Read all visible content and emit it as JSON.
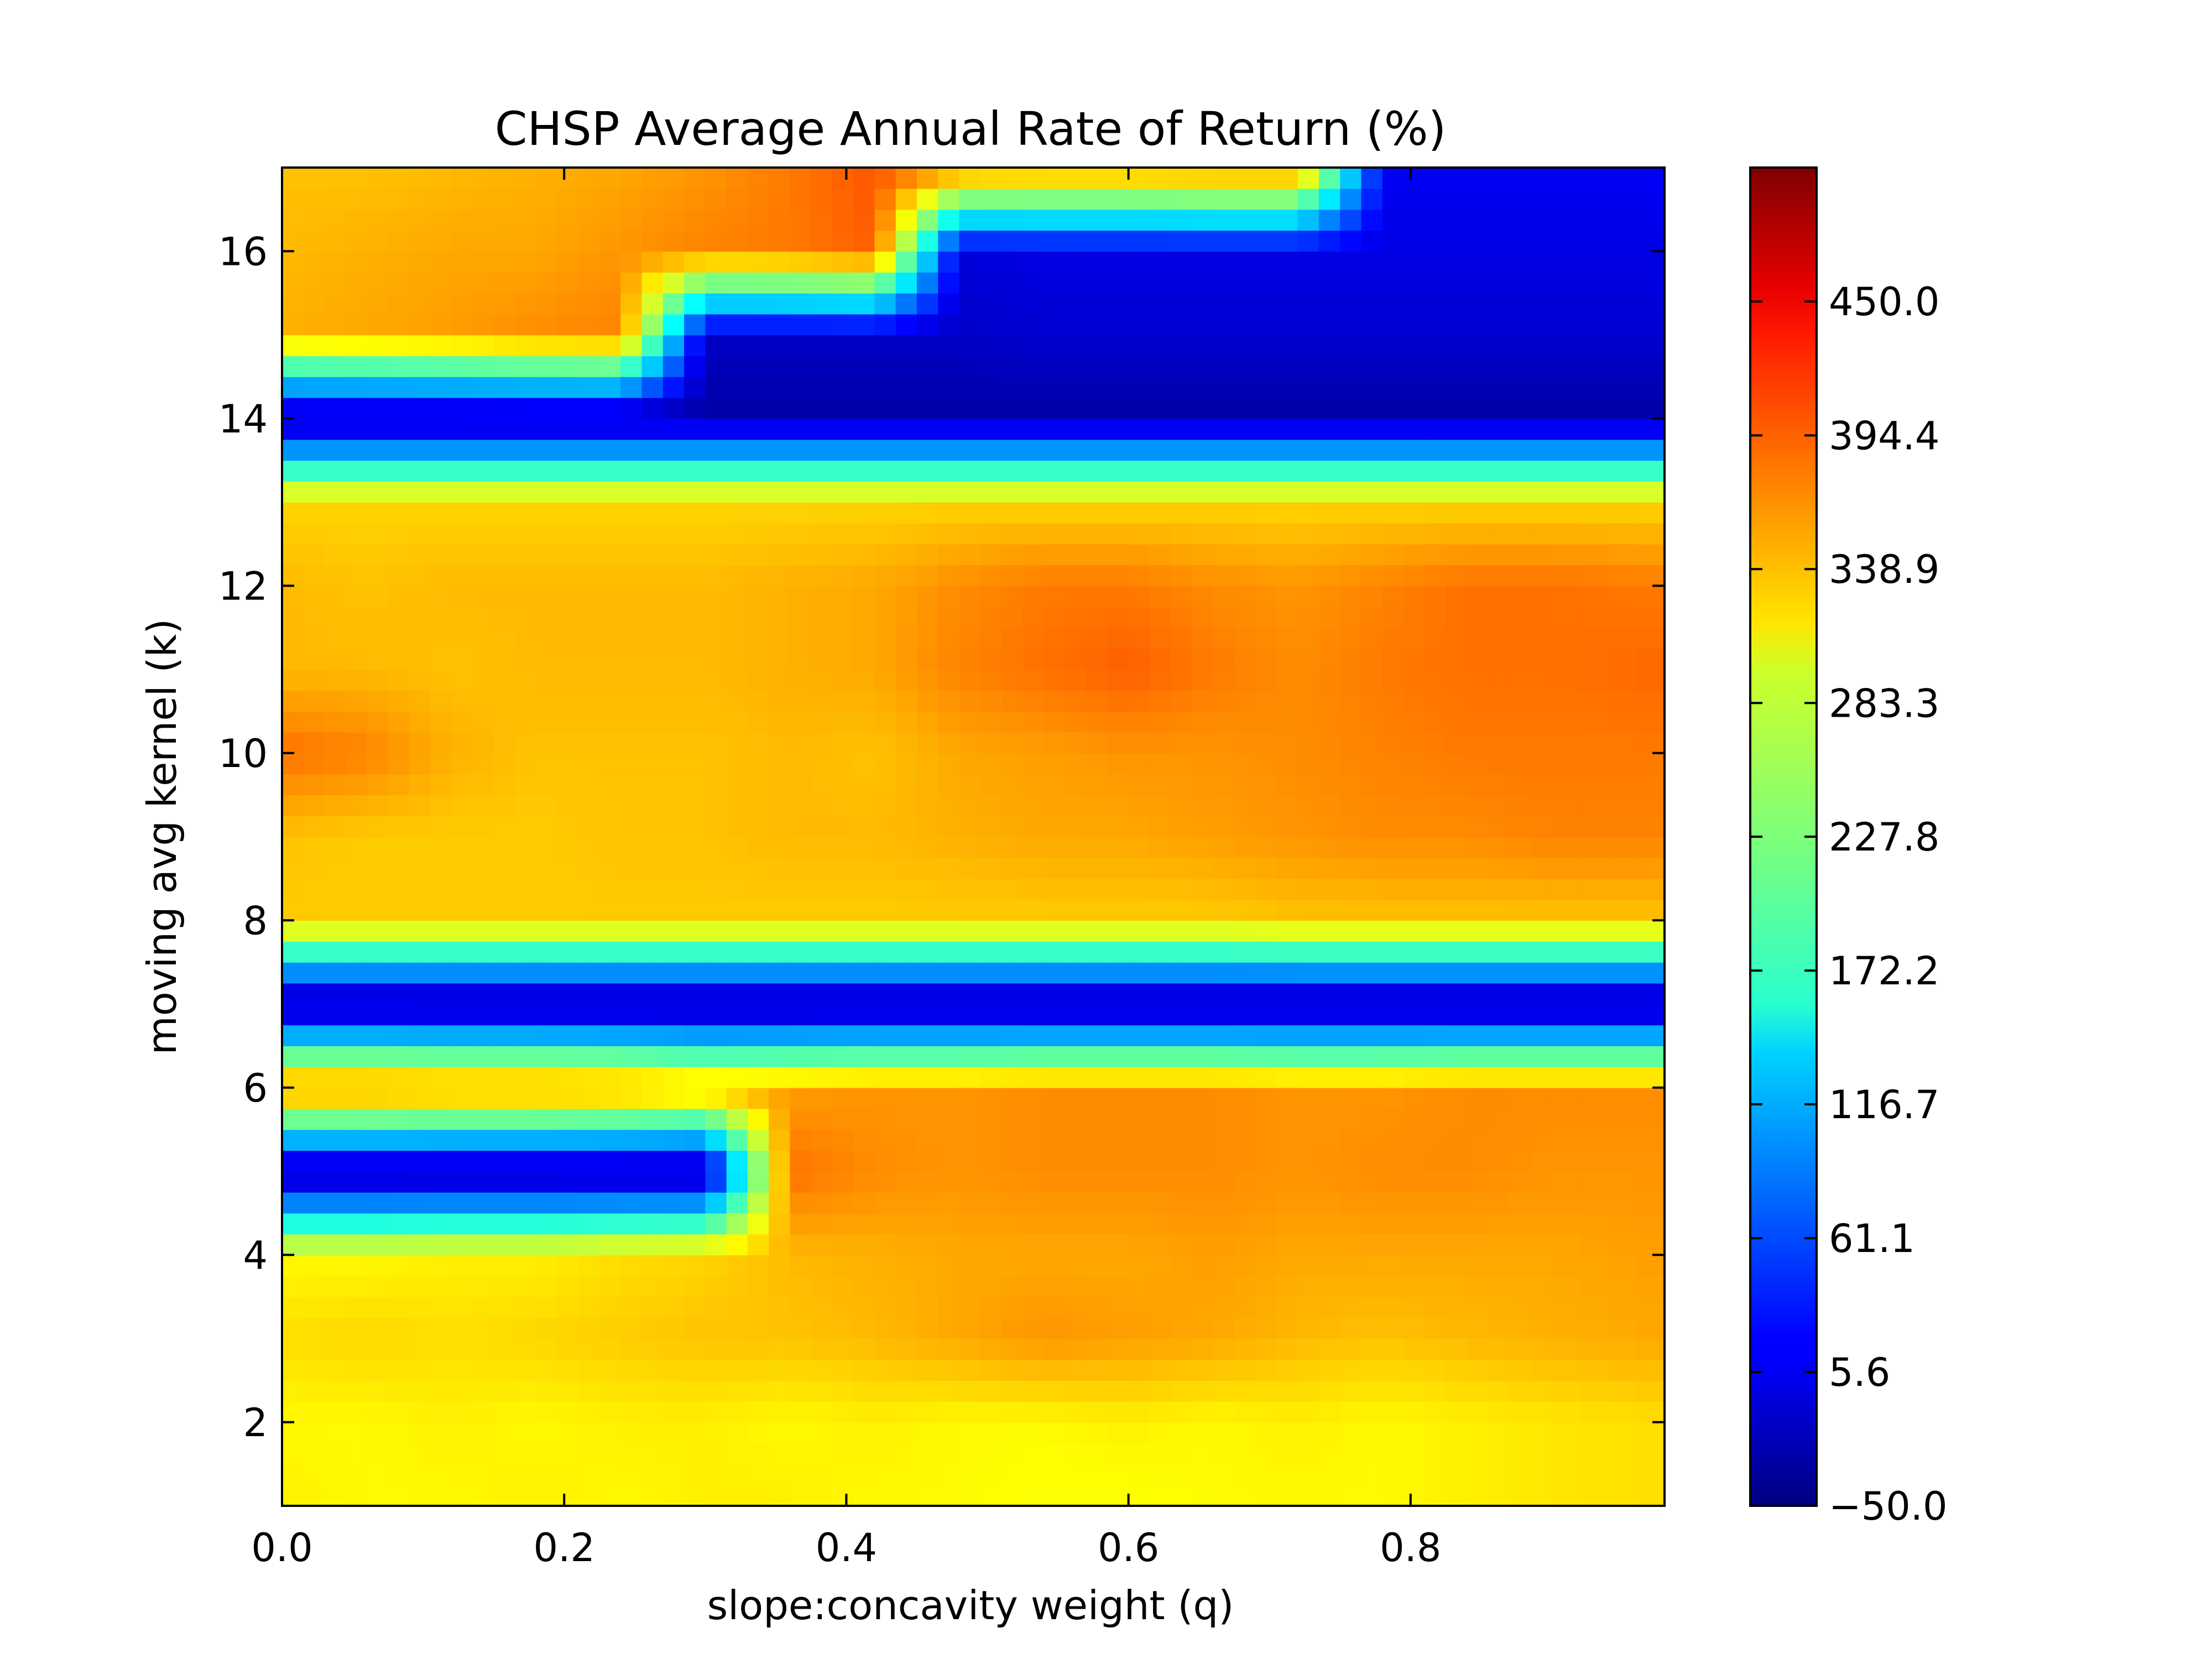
{
  "chart_data": {
    "type": "heatmap",
    "subtype": "filled-contour",
    "title": "CHSP Average Annual Rate of Return (%)",
    "xlabel": "slope:concavity weight (q)",
    "ylabel": "moving avg kernel (k)",
    "xlim": [
      0.0,
      0.98
    ],
    "ylim": [
      1,
      17
    ],
    "x_ticks": [
      0.0,
      0.2,
      0.4,
      0.6,
      0.8
    ],
    "x_tick_labels": [
      "0.0",
      "0.2",
      "0.4",
      "0.6",
      "0.8"
    ],
    "y_ticks": [
      2,
      4,
      6,
      8,
      10,
      12,
      14,
      16
    ],
    "y_tick_labels": [
      "2",
      "4",
      "6",
      "8",
      "10",
      "12",
      "14",
      "16"
    ],
    "colormap": "jet",
    "colorbar": {
      "range": [
        -50.0,
        505.6
      ],
      "ticks": [
        -50.0,
        5.6,
        61.1,
        116.7,
        172.2,
        227.8,
        283.3,
        338.9,
        394.4,
        450.0
      ],
      "tick_labels": [
        "−50.0",
        "5.6",
        "61.1",
        "116.7",
        "172.2",
        "227.8",
        "283.3",
        "338.9",
        "394.4",
        "450.0"
      ]
    },
    "q_values": [
      0.0,
      0.06,
      0.12,
      0.18,
      0.24,
      0.3,
      0.36,
      0.42,
      0.48,
      0.54,
      0.6,
      0.66,
      0.72,
      0.78,
      0.84,
      0.9,
      0.98
    ],
    "k_values": [
      1,
      2,
      3,
      4,
      5,
      6,
      7,
      8,
      9,
      10,
      11,
      12,
      13,
      14,
      15,
      16,
      17
    ],
    "z": [
      [
        305,
        300,
        300,
        305,
        300,
        305,
        305,
        300,
        300,
        295,
        295,
        300,
        300,
        300,
        305,
        310,
        315
      ],
      [
        300,
        300,
        305,
        300,
        305,
        305,
        300,
        305,
        300,
        300,
        305,
        300,
        305,
        300,
        305,
        310,
        315
      ],
      [
        315,
        320,
        315,
        320,
        325,
        330,
        330,
        335,
        345,
        355,
        350,
        345,
        335,
        330,
        335,
        340,
        345
      ],
      [
        300,
        300,
        305,
        305,
        315,
        320,
        335,
        340,
        345,
        345,
        345,
        350,
        345,
        345,
        345,
        345,
        350
      ],
      [
        -35,
        -35,
        -35,
        -35,
        -35,
        -35,
        375,
        360,
        355,
        360,
        360,
        360,
        355,
        360,
        360,
        355,
        355
      ],
      [
        370,
        370,
        365,
        365,
        360,
        345,
        350,
        355,
        355,
        360,
        360,
        360,
        355,
        355,
        360,
        360,
        360
      ],
      [
        -40,
        -40,
        -40,
        -40,
        -40,
        -40,
        -40,
        -40,
        -40,
        -40,
        -40,
        -40,
        -40,
        -40,
        -40,
        -40,
        -40
      ],
      [
        325,
        325,
        325,
        325,
        325,
        325,
        325,
        325,
        325,
        325,
        325,
        325,
        330,
        330,
        330,
        330,
        330
      ],
      [
        330,
        325,
        325,
        325,
        330,
        330,
        335,
        335,
        340,
        345,
        345,
        350,
        355,
        360,
        360,
        365,
        365
      ],
      [
        375,
        365,
        340,
        330,
        330,
        330,
        335,
        330,
        345,
        350,
        355,
        355,
        360,
        365,
        370,
        370,
        370
      ],
      [
        335,
        335,
        330,
        335,
        335,
        335,
        340,
        345,
        365,
        375,
        385,
        370,
        360,
        370,
        375,
        375,
        380
      ],
      [
        335,
        330,
        335,
        335,
        335,
        335,
        340,
        345,
        360,
        370,
        370,
        360,
        355,
        365,
        375,
        375,
        370
      ],
      [
        320,
        320,
        320,
        320,
        320,
        320,
        320,
        320,
        320,
        320,
        320,
        320,
        320,
        320,
        320,
        320,
        320
      ],
      [
        -30,
        -30,
        -30,
        -30,
        -30,
        -30,
        -30,
        -30,
        -30,
        -30,
        -30,
        -30,
        -30,
        -30,
        -30,
        -30,
        -30
      ],
      [
        340,
        345,
        350,
        360,
        365,
        -10,
        -10,
        -10,
        -10,
        -5,
        -5,
        -5,
        -5,
        -5,
        -5,
        -5,
        -5
      ],
      [
        335,
        340,
        345,
        345,
        355,
        365,
        370,
        385,
        0,
        5,
        5,
        5,
        5,
        5,
        5,
        5,
        5
      ],
      [
        330,
        330,
        335,
        340,
        345,
        355,
        370,
        390,
        365,
        360,
        360,
        365,
        365,
        15,
        15,
        15,
        15
      ]
    ]
  }
}
